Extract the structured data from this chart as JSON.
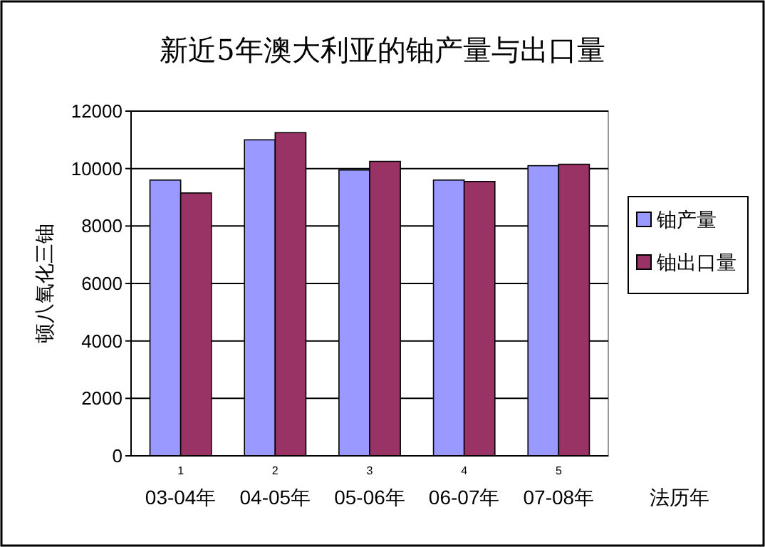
{
  "chart_data": {
    "type": "bar",
    "title": "新近5年澳大利亚的铀产量与出口量",
    "ylabel": "顿八氧化三铀",
    "xlabel": "法历年",
    "categories": [
      "03-04年",
      "04-05年",
      "05-06年",
      "06-07年",
      "07-08年"
    ],
    "series": [
      {
        "name": "铀产量",
        "color": "#9999ff",
        "values": [
          9600,
          11000,
          9950,
          9600,
          10100
        ]
      },
      {
        "name": "铀出口量",
        "color": "#993366",
        "values": [
          9150,
          11250,
          10250,
          9550,
          10150
        ]
      }
    ],
    "annotations": [
      "1",
      "2",
      "3",
      "4",
      "5"
    ],
    "ylim": [
      0,
      12000
    ],
    "yticks": [
      0,
      2000,
      4000,
      6000,
      8000,
      10000,
      12000
    ],
    "grid": "y",
    "legend": "right"
  }
}
